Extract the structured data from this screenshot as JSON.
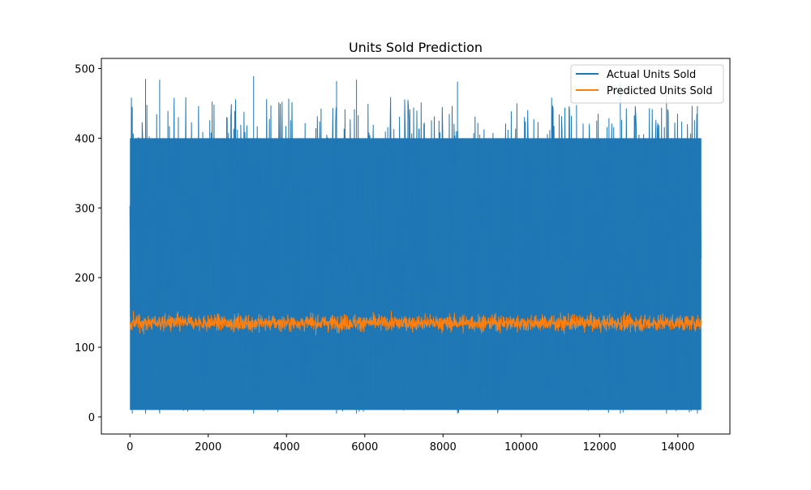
{
  "chart_data": {
    "type": "line",
    "title": "Units Sold Prediction",
    "xlabel": "",
    "ylabel": "",
    "xlim": [
      -730,
      15330
    ],
    "ylim": [
      -24.5,
      514.5
    ],
    "x_ticks": [
      0,
      2000,
      4000,
      6000,
      8000,
      10000,
      12000,
      14000
    ],
    "y_ticks": [
      0,
      100,
      200,
      300,
      400,
      500
    ],
    "grid": false,
    "legend_position": "top-right",
    "n_points": 14600,
    "series": [
      {
        "name": "Actual Units Sold",
        "color": "#1f77b4",
        "x_range": [
          0,
          14600
        ],
        "min": 0,
        "max": 489,
        "typical_range": [
          5,
          460
        ],
        "description_peaks": [
          [
            60,
            445
          ],
          [
            400,
            485
          ],
          [
            760,
            484
          ],
          [
            3160,
            489
          ],
          [
            5280,
            482
          ],
          [
            5790,
            484
          ],
          [
            8370,
            481
          ],
          [
            12530,
            480
          ],
          [
            13710,
            480
          ],
          [
            14500,
            446
          ]
        ]
      },
      {
        "name": "Predicted Units Sold",
        "color": "#ff7f0e",
        "x_range": [
          0,
          14600
        ],
        "center": 135,
        "typical_range": [
          120,
          152
        ],
        "min": 102,
        "max": 175
      }
    ]
  }
}
